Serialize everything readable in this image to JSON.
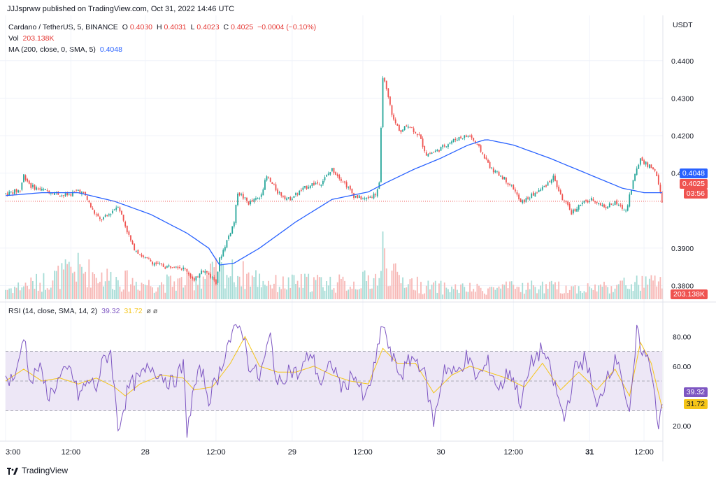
{
  "header": {
    "published": "JJJsprww published on TradingView.com, Oct 31, 2022 14:46 UTC"
  },
  "legend": {
    "symbol": "Cardano / TetherUS, 5, BINANCE",
    "o_label": "O",
    "o_value": "0.4030",
    "h_label": "H",
    "h_value": "0.4031",
    "l_label": "L",
    "l_value": "0.4023",
    "c_label": "C",
    "c_value": "0.4025",
    "change": "−0.0004 (−0.10%)",
    "vol_label": "Vol",
    "vol_value": "203.138K",
    "ma_label": "MA (200, close, 0, SMA, 5)",
    "ma_value": "0.4048",
    "rsi_label": "RSI (14, close, SMA, 14, 2)",
    "rsi_value": "39.32",
    "rsi_sma_value": "31.72",
    "rsi_extra": "ø ø"
  },
  "colors": {
    "up": "#26a69a",
    "down": "#ef5350",
    "ma": "#2962ff",
    "rsi": "#7e57c2",
    "rsi_sma": "#f5c518",
    "band": "#ede7f6"
  },
  "badges": {
    "ma": "0.4048",
    "price": "0.4025",
    "countdown": "03:56",
    "volume": "203.138K",
    "rsi": "39.32",
    "rsi_sma": "31.72"
  },
  "footer": {
    "brand": "TradingView"
  },
  "chart_data": {
    "type": "candlestick",
    "price_axis_unit": "USDT",
    "price_ticks": [
      "0.4400",
      "0.4300",
      "0.4200",
      "0.4100",
      "0.3900",
      "0.3800"
    ],
    "rsi_ticks": [
      "80.00",
      "60.00",
      "20.00"
    ],
    "x_ticks": [
      "3:00",
      "12:00",
      "28",
      "12:00",
      "29",
      "12:00",
      "30",
      "12:00",
      "31",
      "12:00"
    ],
    "price_ylim": [
      0.376,
      0.445
    ],
    "rsi_ylim": [
      10,
      90
    ],
    "rsi_bands": [
      70,
      30
    ],
    "price_path": [
      [
        0,
        0.4045
      ],
      [
        4,
        0.405
      ],
      [
        8,
        0.4055
      ],
      [
        10,
        0.4095
      ],
      [
        14,
        0.4065
      ],
      [
        20,
        0.4055
      ],
      [
        26,
        0.405
      ],
      [
        32,
        0.404
      ],
      [
        36,
        0.4045
      ],
      [
        40,
        0.4055
      ],
      [
        44,
        0.404
      ],
      [
        48,
        0.4
      ],
      [
        52,
        0.3975
      ],
      [
        56,
        0.3985
      ],
      [
        62,
        0.4015
      ],
      [
        66,
        0.396
      ],
      [
        70,
        0.3905
      ],
      [
        76,
        0.3875
      ],
      [
        82,
        0.386
      ],
      [
        88,
        0.385
      ],
      [
        94,
        0.3855
      ],
      [
        100,
        0.384
      ],
      [
        104,
        0.381
      ],
      [
        108,
        0.3845
      ],
      [
        112,
        0.383
      ],
      [
        116,
        0.381
      ],
      [
        118,
        0.387
      ],
      [
        122,
        0.392
      ],
      [
        126,
        0.397
      ],
      [
        128,
        0.405
      ],
      [
        134,
        0.402
      ],
      [
        140,
        0.4035
      ],
      [
        144,
        0.409
      ],
      [
        150,
        0.405
      ],
      [
        156,
        0.403
      ],
      [
        162,
        0.405
      ],
      [
        168,
        0.407
      ],
      [
        174,
        0.4075
      ],
      [
        180,
        0.411
      ],
      [
        186,
        0.408
      ],
      [
        192,
        0.404
      ],
      [
        198,
        0.403
      ],
      [
        204,
        0.4045
      ],
      [
        206,
        0.407
      ],
      [
        208,
        0.436
      ],
      [
        210,
        0.432
      ],
      [
        214,
        0.424
      ],
      [
        218,
        0.421
      ],
      [
        222,
        0.423
      ],
      [
        228,
        0.42
      ],
      [
        232,
        0.415
      ],
      [
        238,
        0.416
      ],
      [
        244,
        0.418
      ],
      [
        250,
        0.4195
      ],
      [
        256,
        0.42
      ],
      [
        262,
        0.416
      ],
      [
        268,
        0.411
      ],
      [
        274,
        0.409
      ],
      [
        280,
        0.406
      ],
      [
        284,
        0.402
      ],
      [
        290,
        0.404
      ],
      [
        296,
        0.406
      ],
      [
        302,
        0.409
      ],
      [
        306,
        0.404
      ],
      [
        312,
        0.3995
      ],
      [
        318,
        0.402
      ],
      [
        324,
        0.403
      ],
      [
        330,
        0.401
      ],
      [
        336,
        0.402
      ],
      [
        342,
        0.4
      ],
      [
        346,
        0.408
      ],
      [
        350,
        0.414
      ],
      [
        354,
        0.412
      ],
      [
        358,
        0.411
      ],
      [
        362,
        0.4025
      ]
    ],
    "ma_path": [
      [
        0,
        0.404
      ],
      [
        20,
        0.4048
      ],
      [
        40,
        0.4048
      ],
      [
        60,
        0.4025
      ],
      [
        80,
        0.399
      ],
      [
        100,
        0.394
      ],
      [
        112,
        0.39
      ],
      [
        118,
        0.3855
      ],
      [
        126,
        0.386
      ],
      [
        140,
        0.39
      ],
      [
        160,
        0.397
      ],
      [
        180,
        0.403
      ],
      [
        200,
        0.405
      ],
      [
        210,
        0.4075
      ],
      [
        225,
        0.411
      ],
      [
        240,
        0.414
      ],
      [
        255,
        0.4175
      ],
      [
        265,
        0.419
      ],
      [
        280,
        0.4175
      ],
      [
        300,
        0.414
      ],
      [
        320,
        0.41
      ],
      [
        340,
        0.406
      ],
      [
        352,
        0.4048
      ],
      [
        362,
        0.4048
      ]
    ],
    "rsi_path": [
      [
        0,
        50
      ],
      [
        6,
        54
      ],
      [
        10,
        82
      ],
      [
        14,
        48
      ],
      [
        18,
        60
      ],
      [
        24,
        40
      ],
      [
        30,
        52
      ],
      [
        36,
        58
      ],
      [
        40,
        40
      ],
      [
        46,
        50
      ],
      [
        50,
        46
      ],
      [
        54,
        64
      ],
      [
        58,
        70
      ],
      [
        62,
        18
      ],
      [
        68,
        46
      ],
      [
        74,
        52
      ],
      [
        80,
        60
      ],
      [
        86,
        54
      ],
      [
        92,
        48
      ],
      [
        98,
        60
      ],
      [
        100,
        16
      ],
      [
        104,
        46
      ],
      [
        108,
        58
      ],
      [
        112,
        38
      ],
      [
        118,
        56
      ],
      [
        122,
        74
      ],
      [
        126,
        82
      ],
      [
        130,
        88
      ],
      [
        134,
        62
      ],
      [
        140,
        52
      ],
      [
        146,
        80
      ],
      [
        150,
        46
      ],
      [
        156,
        58
      ],
      [
        162,
        54
      ],
      [
        168,
        70
      ],
      [
        174,
        48
      ],
      [
        180,
        62
      ],
      [
        186,
        44
      ],
      [
        192,
        56
      ],
      [
        198,
        36
      ],
      [
        204,
        62
      ],
      [
        208,
        90
      ],
      [
        212,
        68
      ],
      [
        218,
        54
      ],
      [
        224,
        66
      ],
      [
        230,
        60
      ],
      [
        236,
        22
      ],
      [
        242,
        60
      ],
      [
        248,
        54
      ],
      [
        254,
        66
      ],
      [
        260,
        52
      ],
      [
        266,
        62
      ],
      [
        272,
        44
      ],
      [
        278,
        58
      ],
      [
        284,
        36
      ],
      [
        290,
        62
      ],
      [
        296,
        72
      ],
      [
        302,
        50
      ],
      [
        308,
        24
      ],
      [
        314,
        58
      ],
      [
        320,
        66
      ],
      [
        326,
        30
      ],
      [
        332,
        56
      ],
      [
        338,
        66
      ],
      [
        344,
        24
      ],
      [
        348,
        82
      ],
      [
        352,
        68
      ],
      [
        356,
        60
      ],
      [
        360,
        20
      ],
      [
        362,
        39
      ]
    ],
    "rsi_sma_path": [
      [
        0,
        50
      ],
      [
        10,
        58
      ],
      [
        20,
        50
      ],
      [
        30,
        52
      ],
      [
        40,
        48
      ],
      [
        50,
        52
      ],
      [
        60,
        46
      ],
      [
        66,
        40
      ],
      [
        74,
        48
      ],
      [
        86,
        54
      ],
      [
        98,
        52
      ],
      [
        104,
        44
      ],
      [
        114,
        46
      ],
      [
        124,
        62
      ],
      [
        132,
        80
      ],
      [
        140,
        60
      ],
      [
        150,
        56
      ],
      [
        160,
        56
      ],
      [
        170,
        60
      ],
      [
        180,
        54
      ],
      [
        190,
        50
      ],
      [
        200,
        48
      ],
      [
        208,
        72
      ],
      [
        216,
        62
      ],
      [
        226,
        62
      ],
      [
        236,
        42
      ],
      [
        246,
        54
      ],
      [
        256,
        60
      ],
      [
        266,
        56
      ],
      [
        276,
        52
      ],
      [
        286,
        46
      ],
      [
        296,
        62
      ],
      [
        306,
        44
      ],
      [
        316,
        56
      ],
      [
        326,
        44
      ],
      [
        336,
        58
      ],
      [
        344,
        40
      ],
      [
        350,
        76
      ],
      [
        356,
        62
      ],
      [
        362,
        31.72
      ]
    ],
    "volume_path": [
      [
        0,
        0.2
      ],
      [
        20,
        0.35
      ],
      [
        40,
        0.6
      ],
      [
        60,
        0.4
      ],
      [
        80,
        0.3
      ],
      [
        100,
        0.35
      ],
      [
        118,
        0.55
      ],
      [
        130,
        0.5
      ],
      [
        150,
        0.3
      ],
      [
        170,
        0.35
      ],
      [
        190,
        0.3
      ],
      [
        207,
        0.45
      ],
      [
        208,
        1.0
      ],
      [
        212,
        0.5
      ],
      [
        230,
        0.25
      ],
      [
        260,
        0.2
      ],
      [
        290,
        0.25
      ],
      [
        320,
        0.22
      ],
      [
        345,
        0.3
      ],
      [
        362,
        0.35
      ]
    ]
  }
}
